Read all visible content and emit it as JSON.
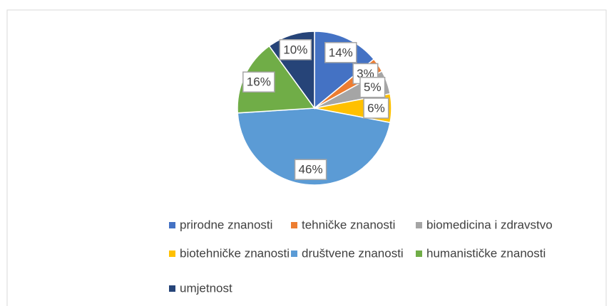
{
  "chart_data": {
    "type": "pie",
    "categories": [
      "prirodne znanosti",
      "tehničke znanosti",
      "biomedicina i zdravstvo",
      "biotehničke znanosti",
      "društvene znanosti",
      "humanističke znanosti",
      "umjetnost"
    ],
    "values": [
      14,
      3,
      5,
      6,
      46,
      16,
      10
    ],
    "value_labels": [
      "14%",
      "3%",
      "5%",
      "6%",
      "46%",
      "16%",
      "10%"
    ],
    "colors": [
      "#4472c4",
      "#ed7d31",
      "#a5a5a5",
      "#ffc000",
      "#5b9bd5",
      "#70ad47",
      "#264478"
    ],
    "legend": "bottom"
  }
}
